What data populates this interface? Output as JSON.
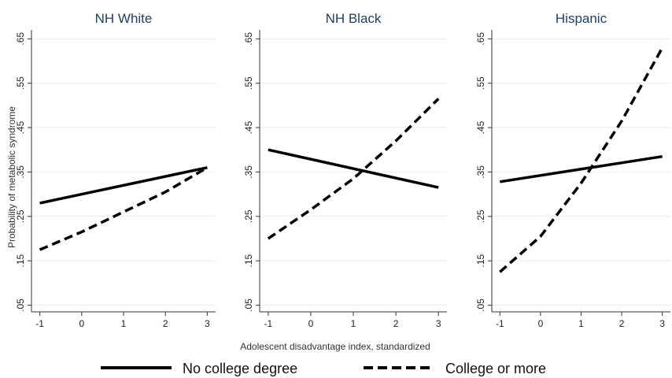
{
  "chart_data": {
    "type": "line",
    "panels": [
      {
        "title": "NH White",
        "series": [
          {
            "name": "No college degree",
            "x": [
              -1,
              3
            ],
            "y": [
              0.28,
              0.36
            ]
          },
          {
            "name": "College or more",
            "x": [
              -1,
              0,
              1,
              2,
              3
            ],
            "y": [
              0.175,
              0.215,
              0.26,
              0.305,
              0.36
            ]
          }
        ]
      },
      {
        "title": "NH Black",
        "series": [
          {
            "name": "No college degree",
            "x": [
              -1,
              3
            ],
            "y": [
              0.4,
              0.315
            ]
          },
          {
            "name": "College or more",
            "x": [
              -1,
              0,
              1,
              2,
              3
            ],
            "y": [
              0.2,
              0.265,
              0.335,
              0.42,
              0.515
            ]
          }
        ]
      },
      {
        "title": "Hispanic",
        "series": [
          {
            "name": "No college degree",
            "x": [
              -1,
              3
            ],
            "y": [
              0.328,
              0.385
            ]
          },
          {
            "name": "College or more",
            "x": [
              -1,
              0,
              1,
              2,
              3
            ],
            "y": [
              0.125,
              0.205,
              0.325,
              0.465,
              0.63
            ]
          }
        ]
      }
    ],
    "xlabel": "Adolescent disadvantage index, standardized",
    "ylabel": "Probability of metabolic syndrome",
    "x_ticks": [
      -1,
      0,
      1,
      2,
      3
    ],
    "x_tick_labels": [
      "-1",
      "0",
      "1",
      "2",
      "3"
    ],
    "y_ticks": [
      0.05,
      0.15,
      0.25,
      0.35,
      0.45,
      0.55,
      0.65
    ],
    "y_tick_labels": [
      ".05",
      ".15",
      ".25",
      ".35",
      ".45",
      ".55",
      ".65"
    ],
    "xlim": [
      -1.2,
      3.2
    ],
    "ylim": [
      0.035,
      0.67
    ],
    "grid": true,
    "legend": {
      "position": "bottom",
      "entries": [
        {
          "label": "No college degree",
          "style": "solid"
        },
        {
          "label": "College or more",
          "style": "dashed"
        }
      ]
    },
    "colors": {
      "line": "#000000",
      "title": "#1f3f66",
      "grid": "#e6eef4",
      "axis": "#333333"
    }
  }
}
